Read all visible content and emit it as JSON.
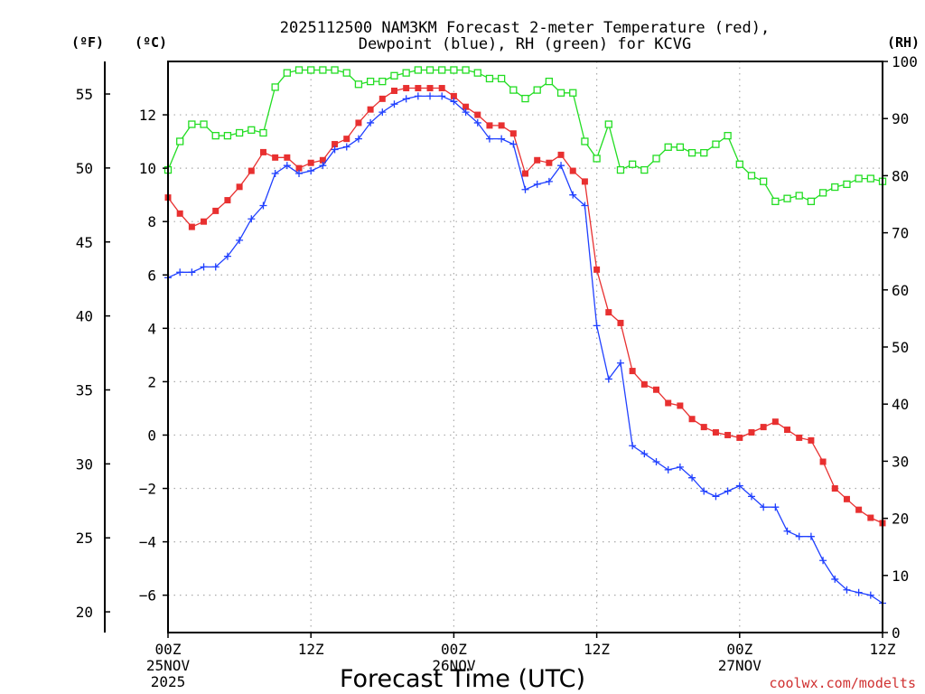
{
  "chart_data": {
    "type": "line",
    "title": [
      "2025112500 NAM3KM Forecast 2-meter Temperature (red),",
      "Dewpoint (blue), RH (green) for KCVG"
    ],
    "xlabel": "Forecast Time (UTC)",
    "credit": "coolwx.com/modelts",
    "x_hours": [
      0,
      1,
      2,
      3,
      4,
      5,
      6,
      7,
      8,
      9,
      10,
      11,
      12,
      13,
      14,
      15,
      16,
      17,
      18,
      19,
      20,
      21,
      22,
      23,
      24,
      25,
      26,
      27,
      28,
      29,
      30,
      31,
      32,
      33,
      34,
      35,
      36,
      37,
      38,
      39,
      40,
      41,
      42,
      43,
      44,
      45,
      46,
      47,
      48,
      49,
      50,
      51,
      52,
      53,
      54,
      55,
      56,
      57,
      58,
      59,
      60
    ],
    "xlim": [
      0,
      60
    ],
    "x_ticks": [
      {
        "hour": 0,
        "lines": [
          "00Z",
          "25NOV",
          "2025"
        ]
      },
      {
        "hour": 12,
        "lines": [
          "12Z"
        ]
      },
      {
        "hour": 24,
        "lines": [
          "00Z",
          "26NOV"
        ]
      },
      {
        "hour": 36,
        "lines": [
          "12Z"
        ]
      },
      {
        "hour": 48,
        "lines": [
          "00Z",
          "27NOV"
        ]
      },
      {
        "hour": 60,
        "lines": [
          "12Z"
        ]
      }
    ],
    "left_axis_c": {
      "label": "(ºC)",
      "ylim": [
        -7.4,
        14.0
      ],
      "ticks": [
        -6,
        -4,
        -2,
        0,
        2,
        4,
        6,
        8,
        10,
        12
      ]
    },
    "left_axis_f": {
      "label": "(ºF)",
      "ylim": [
        18.6,
        57.2
      ],
      "ticks": [
        20,
        25,
        30,
        35,
        40,
        45,
        50,
        55
      ]
    },
    "right_axis_rh": {
      "label": "(RH)",
      "ylim": [
        0,
        100
      ],
      "ticks": [
        0,
        10,
        20,
        30,
        40,
        50,
        60,
        70,
        80,
        90,
        100
      ]
    },
    "grid": true,
    "series": [
      {
        "name": "Temperature",
        "units": "C",
        "axis": "c",
        "color": "#e83030",
        "marker": "filled-square",
        "values": [
          8.9,
          8.3,
          7.8,
          8.0,
          8.4,
          8.8,
          9.3,
          9.9,
          10.6,
          10.4,
          10.4,
          10.0,
          10.2,
          10.3,
          10.9,
          11.1,
          11.7,
          12.2,
          12.6,
          12.9,
          13.0,
          13.0,
          13.0,
          13.0,
          12.7,
          12.3,
          12.0,
          11.6,
          11.6,
          11.3,
          9.8,
          10.3,
          10.2,
          10.5,
          9.9,
          9.5,
          6.2,
          4.6,
          4.2,
          2.4,
          1.9,
          1.7,
          1.2,
          1.1,
          0.6,
          0.3,
          0.1,
          0.0,
          -0.1,
          0.1,
          0.3,
          0.5,
          0.2,
          -0.1,
          -0.2,
          -1.0,
          -2.0,
          -2.4,
          -2.8,
          -3.1,
          -3.3
        ]
      },
      {
        "name": "Dewpoint",
        "units": "C",
        "axis": "c",
        "color": "#2040ff",
        "marker": "plus",
        "values": [
          5.9,
          6.1,
          6.1,
          6.3,
          6.3,
          6.7,
          7.3,
          8.1,
          8.6,
          9.8,
          10.1,
          9.8,
          9.9,
          10.1,
          10.7,
          10.8,
          11.1,
          11.7,
          12.1,
          12.4,
          12.6,
          12.7,
          12.7,
          12.7,
          12.5,
          12.1,
          11.7,
          11.1,
          11.1,
          10.9,
          9.2,
          9.4,
          9.5,
          10.1,
          9.0,
          8.6,
          4.1,
          2.1,
          2.7,
          -0.4,
          -0.7,
          -1.0,
          -1.3,
          -1.2,
          -1.6,
          -2.1,
          -2.3,
          -2.1,
          -1.9,
          -2.3,
          -2.7,
          -2.7,
          -3.6,
          -3.8,
          -3.8,
          -4.7,
          -5.4,
          -5.8,
          -5.9,
          -6.0,
          -6.3
        ]
      },
      {
        "name": "RH",
        "units": "%",
        "axis": "rh",
        "color": "#22dd22",
        "marker": "open-square",
        "values": [
          81,
          86,
          89,
          89,
          87,
          87,
          87.5,
          88,
          87.5,
          95.5,
          98,
          98.5,
          98.5,
          98.5,
          98.5,
          98,
          96,
          96.5,
          96.5,
          97.5,
          98,
          98.5,
          98.5,
          98.5,
          98.5,
          98.5,
          98,
          97,
          97,
          95,
          93.5,
          95,
          96.5,
          94.5,
          94.5,
          86,
          83,
          89,
          81,
          82,
          81,
          83,
          85,
          85,
          84,
          84,
          85.5,
          87,
          82,
          80,
          79,
          75.5,
          76,
          76.5,
          75.5,
          77,
          78,
          78.5,
          79.5,
          79.5,
          79
        ]
      }
    ]
  }
}
